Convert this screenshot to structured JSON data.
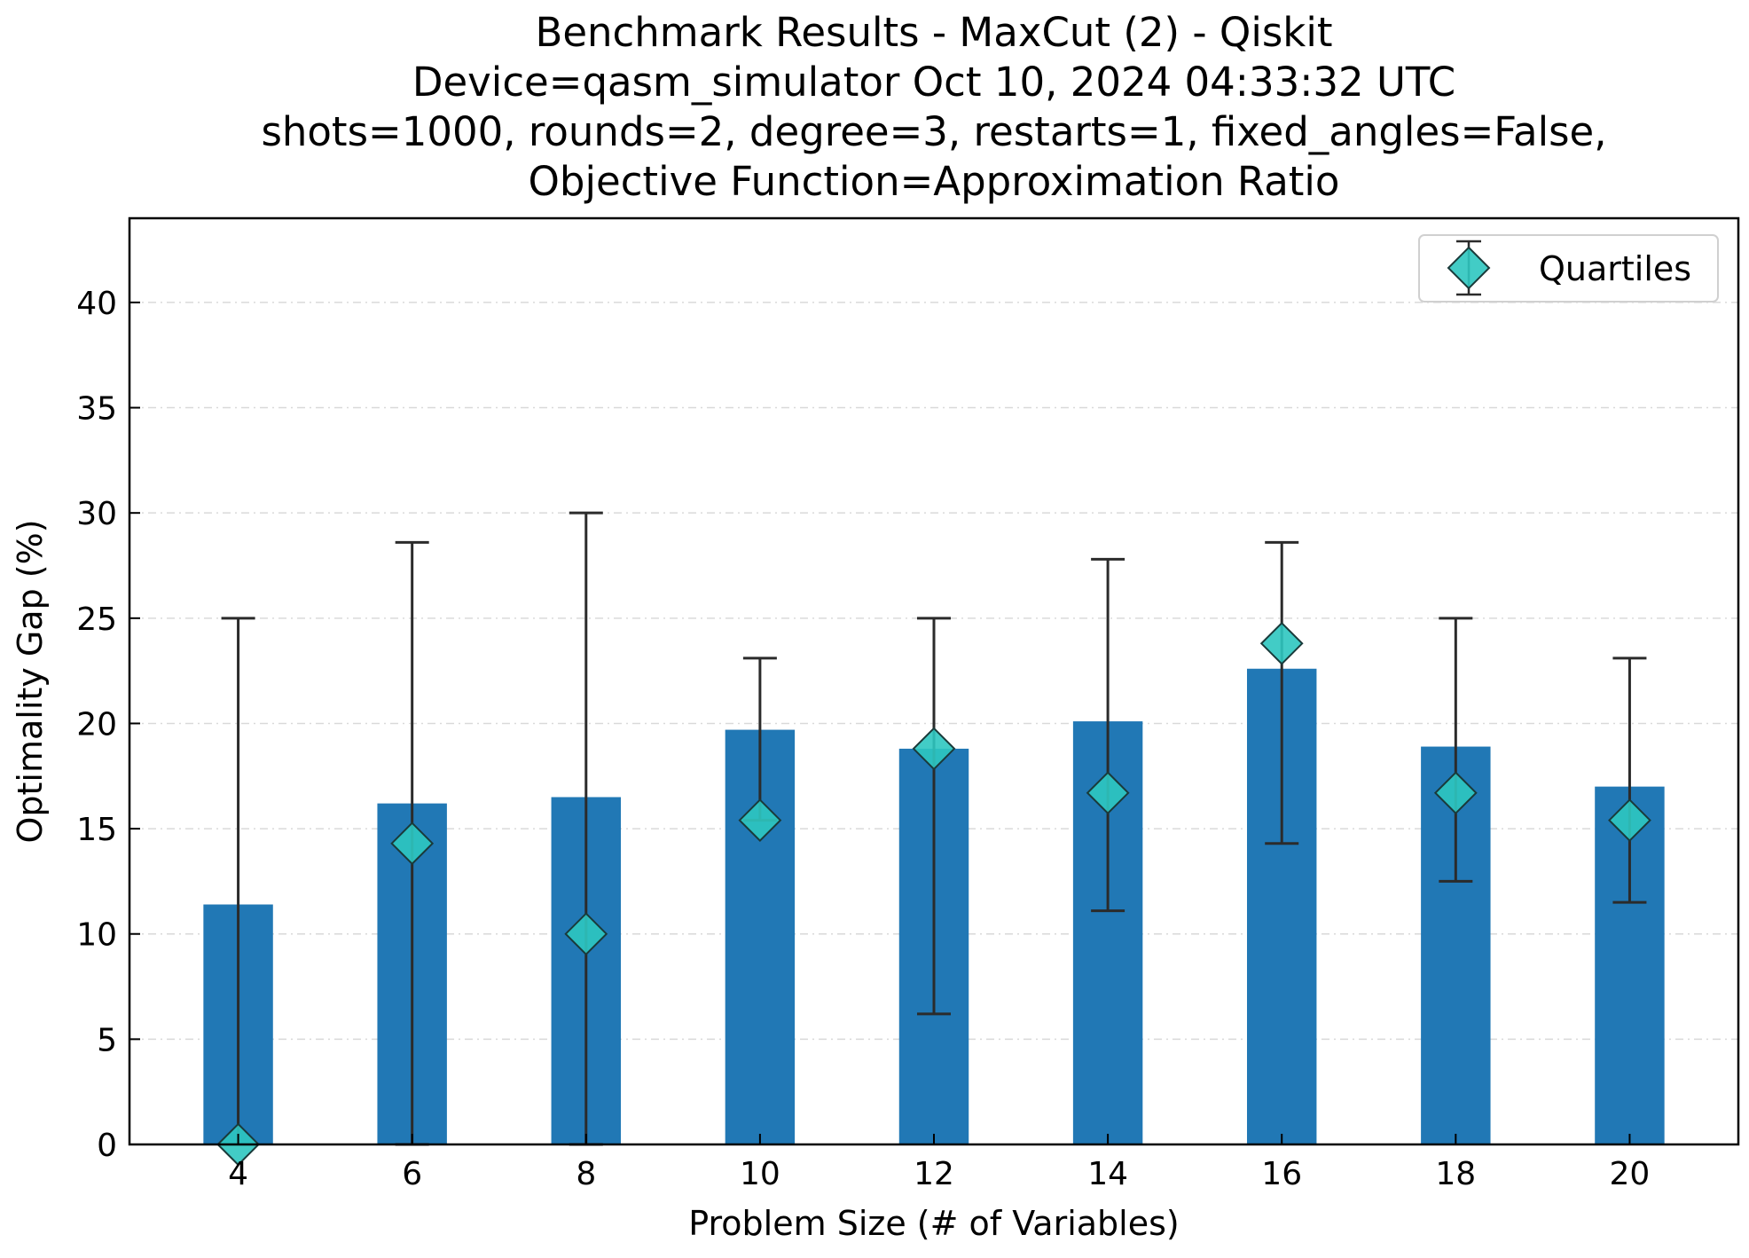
{
  "chart_data": {
    "type": "bar",
    "title_lines": [
      "Benchmark Results - MaxCut (2) - Qiskit",
      "Device=qasm_simulator  Oct 10, 2024 04:33:32 UTC",
      "shots=1000, rounds=2, degree=3, restarts=1, fixed_angles=False,",
      "Objective Function=Approximation Ratio"
    ],
    "xlabel": "Problem Size (# of Variables)",
    "ylabel": "Optimality Gap (%)",
    "categories": [
      "4",
      "6",
      "8",
      "10",
      "12",
      "14",
      "16",
      "18",
      "20"
    ],
    "x": [
      4,
      6,
      8,
      10,
      12,
      14,
      16,
      18,
      20
    ],
    "xlim": [
      2.75,
      21.25
    ],
    "ylim": [
      0,
      44
    ],
    "yticks": [
      0,
      5,
      10,
      15,
      20,
      25,
      30,
      35,
      40
    ],
    "grid": "horizontal dashed",
    "legend_placement": "top-right",
    "series": [
      {
        "kind": "bar",
        "color": "#2178b5",
        "values": [
          11.4,
          16.2,
          16.5,
          19.7,
          18.8,
          20.1,
          22.6,
          18.9,
          17.0
        ]
      },
      {
        "name": "Quartiles",
        "kind": "errorbar",
        "marker": "diamond",
        "color": "#2ec7c0",
        "median": [
          0.0,
          14.3,
          10.0,
          15.4,
          18.8,
          16.7,
          23.8,
          16.7,
          15.4
        ],
        "lower": [
          0.0,
          0.0,
          0.0,
          15.4,
          6.2,
          11.1,
          14.3,
          12.5,
          11.5
        ],
        "upper": [
          25.0,
          28.6,
          30.0,
          23.1,
          25.0,
          27.8,
          28.6,
          25.0,
          23.1
        ]
      }
    ]
  }
}
